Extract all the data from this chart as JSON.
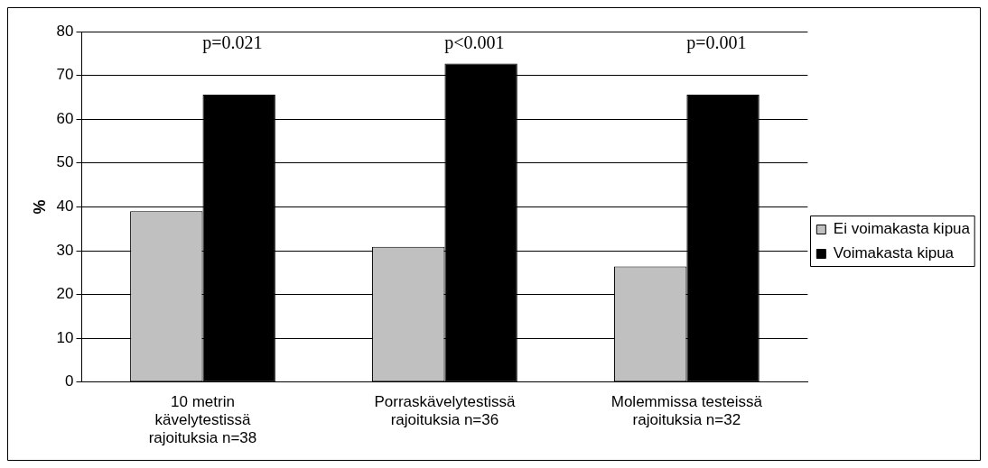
{
  "chart_data": {
    "type": "bar",
    "ylabel": "%",
    "categories": [
      "10 metrin kävelytestissä rajoituksia n=38",
      "Porraskävelytestissä rajoituksia n=36",
      "Molemmissa testeissä rajoituksia n=32"
    ],
    "series": [
      {
        "name": "Ei voimakasta kipua",
        "color": "#c0c0c0",
        "values": [
          39.0,
          30.9,
          26.4
        ]
      },
      {
        "name": "Voimakasta kipua",
        "color": "#000000",
        "values": [
          65.6,
          72.7,
          65.6
        ]
      }
    ],
    "ylim": [
      0,
      80
    ],
    "yticks": [
      0,
      10,
      20,
      30,
      40,
      50,
      60,
      70,
      80
    ],
    "grid": "y",
    "legend": "right",
    "annotations": [
      "p=0.021",
      "p<0.001",
      "p=0.001"
    ]
  }
}
